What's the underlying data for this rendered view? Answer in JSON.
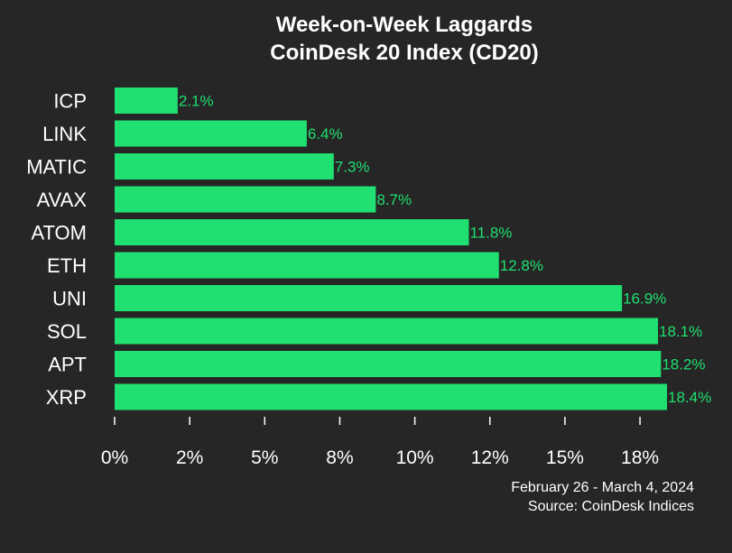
{
  "chart_data": {
    "type": "bar",
    "orientation": "horizontal",
    "title": "Week-on-Week Laggards",
    "subtitle": "CoinDesk 20 Index (CD20)",
    "categories": [
      "ICP",
      "LINK",
      "MATIC",
      "AVAX",
      "ATOM",
      "ETH",
      "UNI",
      "SOL",
      "APT",
      "XRP"
    ],
    "values": [
      2.1,
      6.4,
      7.3,
      8.7,
      11.8,
      12.8,
      16.9,
      18.1,
      18.2,
      18.4
    ],
    "value_labels": [
      "2.1%",
      "6.4%",
      "7.3%",
      "8.7%",
      "11.8%",
      "12.8%",
      "16.9%",
      "18.1%",
      "18.2%",
      "18.4%"
    ],
    "xlabel": "",
    "ylabel": "",
    "xlim": [
      0,
      18.4
    ],
    "x_ticks": [
      0,
      2.5,
      5,
      7.5,
      10,
      12.5,
      15,
      17.5
    ],
    "x_tick_labels": [
      "0%",
      "2%",
      "5%",
      "8%",
      "10%",
      "12%",
      "15%",
      "18%"
    ],
    "grid": false,
    "legend": "none",
    "bar_color": "#1fe070",
    "value_label_color": "#1fe070",
    "background_color": "#262626",
    "footer": {
      "date_range": "February 26 - March 4, 2024",
      "source": "Source: CoinDesk Indices"
    }
  }
}
